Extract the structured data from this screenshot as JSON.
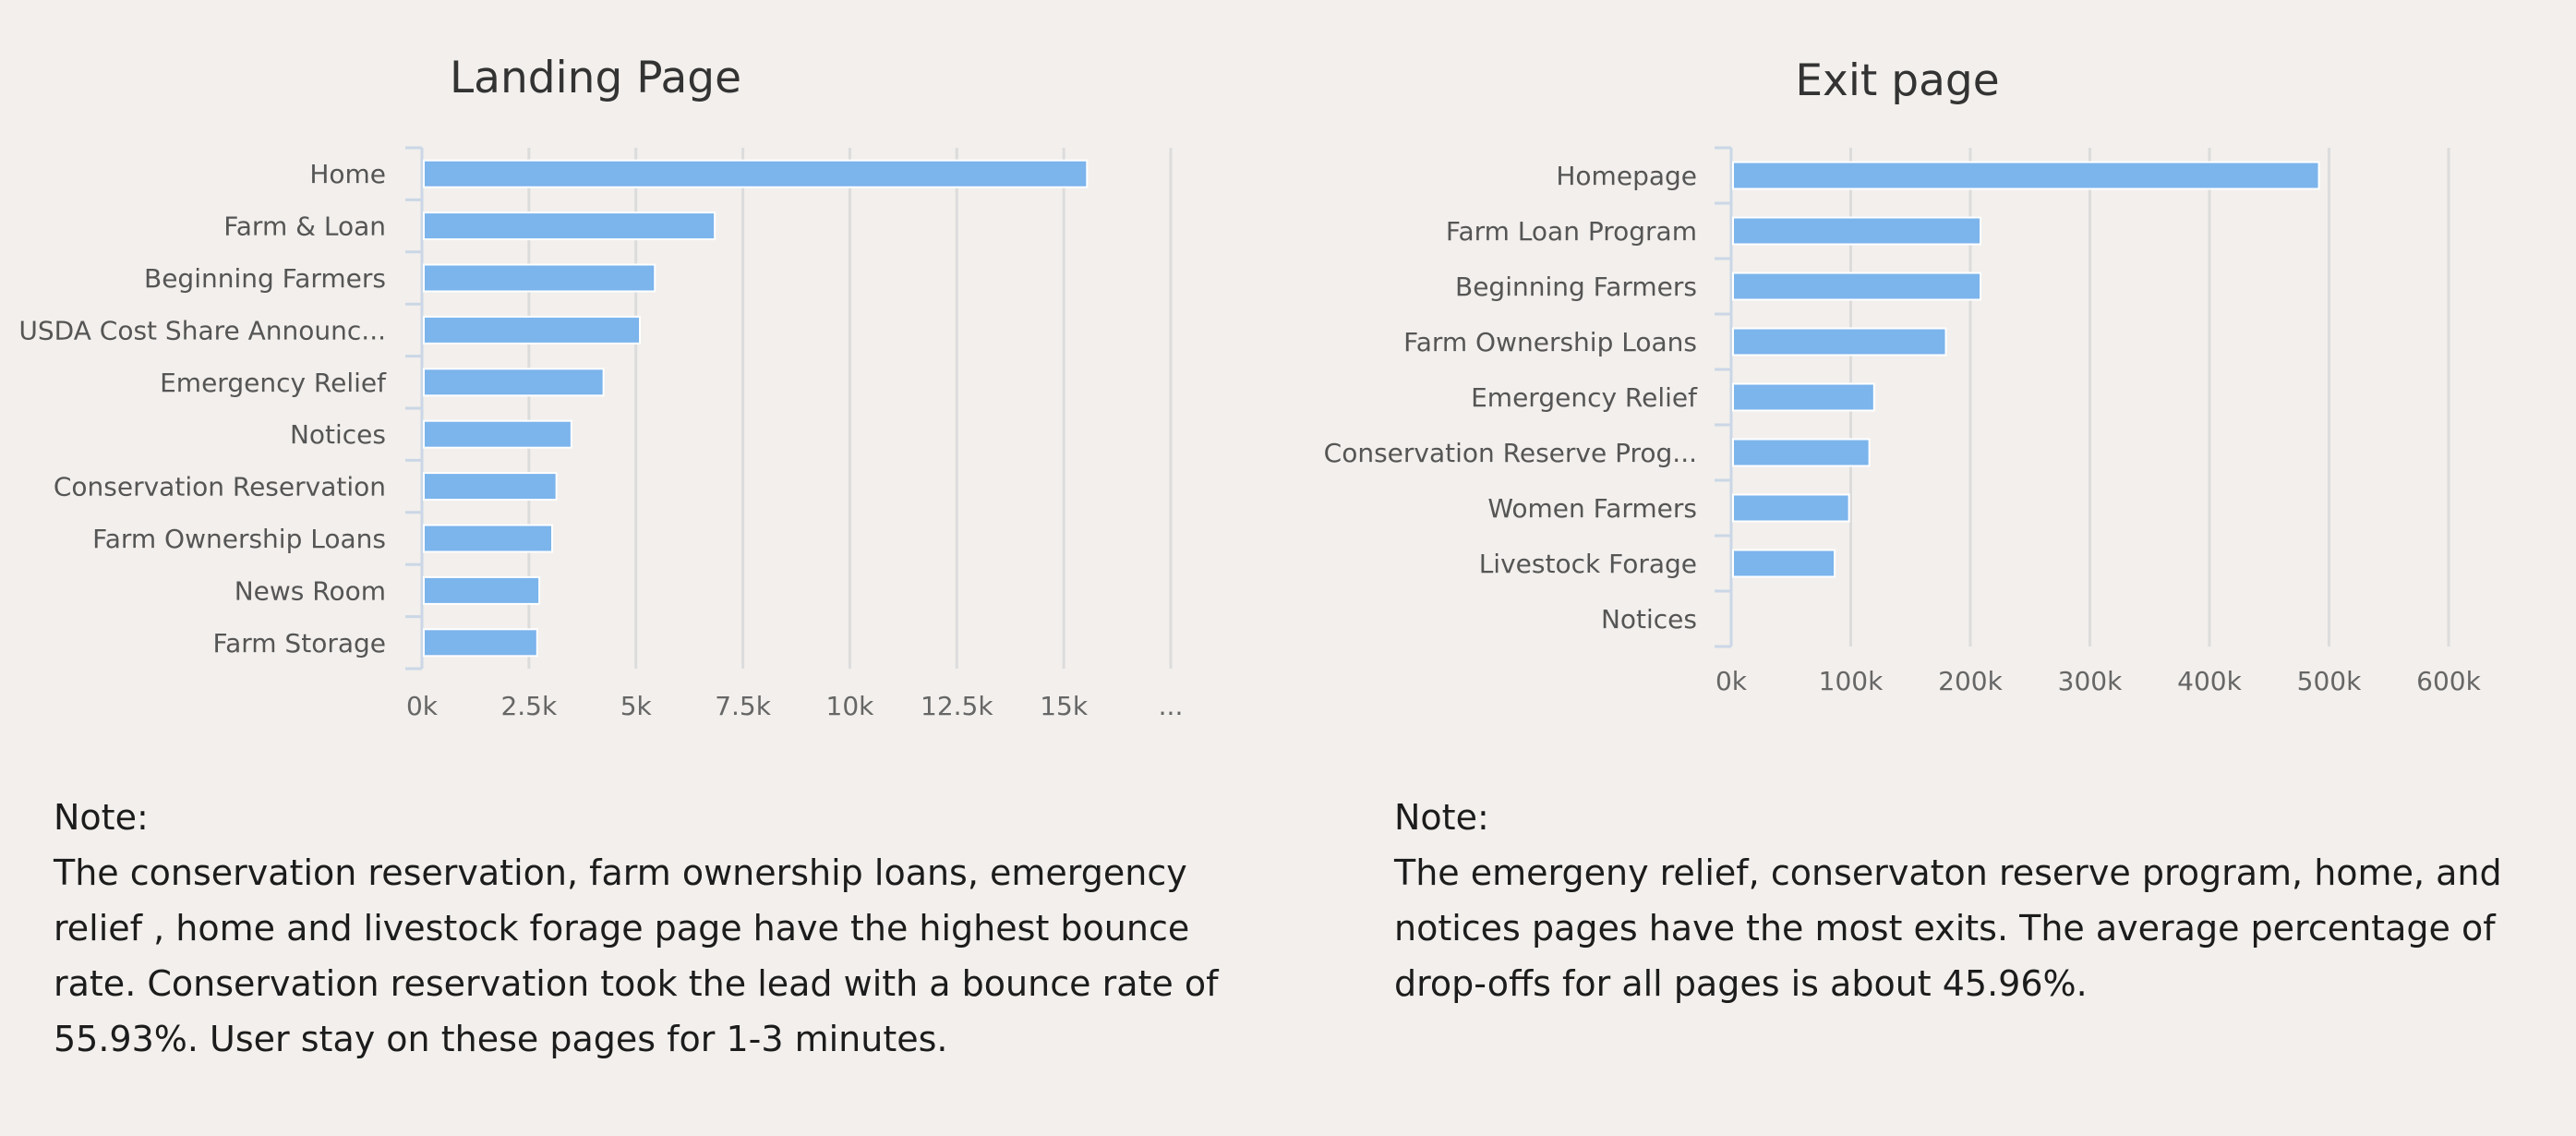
{
  "chart_data": [
    {
      "type": "bar",
      "orientation": "horizontal",
      "title": "Landing Page",
      "categories": [
        "Home",
        "Farm & Loan",
        "Beginning Farmers",
        "USDA Cost Share Announc...",
        "Emergency Relief",
        "Notices",
        "Conservation Reservation",
        "Farm Ownership Loans",
        "News Room",
        "Farm Storage"
      ],
      "values": [
        15500,
        6800,
        5400,
        5050,
        4200,
        3450,
        3100,
        3000,
        2700,
        2650
      ],
      "xlabel": "",
      "ylabel": "",
      "xlim": [
        0,
        17500
      ],
      "tick_values": [
        0,
        2500,
        5000,
        7500,
        10000,
        12500,
        15000,
        17500
      ],
      "tick_labels": [
        "0k",
        "2.5k",
        "5k",
        "7.5k",
        "10k",
        "12.5k",
        "15k",
        "..."
      ],
      "grid": true,
      "bar_color": "#7cb4ec"
    },
    {
      "type": "bar",
      "orientation": "horizontal",
      "title": "Exit page",
      "categories": [
        "Homepage",
        "Farm Loan Program",
        "Beginning Farmers",
        "Farm Ownership Loans",
        "Emergency Relief",
        "Conservation Reserve Prog...",
        "Women Farmers",
        "Livestock Forage",
        "Notices"
      ],
      "values": [
        490000,
        207000,
        207000,
        178000,
        118000,
        114000,
        97000,
        85000,
        0
      ],
      "xlabel": "",
      "ylabel": "",
      "xlim": [
        0,
        600000
      ],
      "tick_values": [
        0,
        100000,
        200000,
        300000,
        400000,
        500000,
        600000
      ],
      "tick_labels": [
        "0k",
        "100k",
        "200k",
        "300k",
        "400k",
        "500k",
        "600k"
      ],
      "grid": true,
      "bar_color": "#7cb4ec"
    }
  ],
  "notes": {
    "landing": {
      "heading": "Note:",
      "text": "The conservation reservation, farm ownership loans, emergency relief , home and livestock forage page have the highest bounce rate. Conservation reservation took the lead with a bounce rate of 55.93%. User stay on these pages for 1-3 minutes."
    },
    "exit": {
      "heading": "Note:",
      "text": "The emergeny relief, conservaton reserve program, home, and notices pages have the most exits. The average percentage of drop-offs for all pages is about 45.96%."
    }
  }
}
